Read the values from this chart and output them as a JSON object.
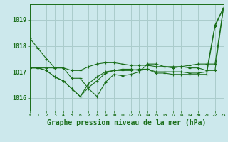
{
  "bg_color": "#cce8ec",
  "grid_color": "#aacccc",
  "line_color": "#1a6e1a",
  "xlabel": "Graphe pression niveau de la mer (hPa)",
  "xlim": [
    0,
    23
  ],
  "ylim": [
    1015.5,
    1019.6
  ],
  "yticks": [
    1016,
    1017,
    1018,
    1019
  ],
  "xticks": [
    0,
    1,
    2,
    3,
    4,
    5,
    6,
    7,
    8,
    9,
    10,
    11,
    12,
    13,
    14,
    15,
    16,
    17,
    18,
    19,
    20,
    21,
    22,
    23
  ],
  "series": [
    [
      1018.3,
      1017.9,
      1017.5,
      1017.15,
      1017.15,
      1016.75,
      1016.75,
      1016.35,
      1016.05,
      1016.6,
      1016.9,
      1016.85,
      1016.9,
      1017.0,
      1017.3,
      1017.3,
      1017.2,
      1017.15,
      1017.2,
      1017.15,
      1017.15,
      1017.05,
      1017.05,
      1019.45
    ],
    [
      1017.15,
      1017.15,
      1017.15,
      1017.15,
      1017.15,
      1017.05,
      1017.05,
      1017.2,
      1017.3,
      1017.35,
      1017.35,
      1017.3,
      1017.25,
      1017.25,
      1017.25,
      1017.2,
      1017.2,
      1017.2,
      1017.2,
      1017.25,
      1017.3,
      1017.3,
      1017.3,
      1019.45
    ],
    [
      1017.15,
      1017.15,
      1017.05,
      1016.8,
      1016.65,
      1016.35,
      1016.05,
      1016.55,
      1016.8,
      1017.0,
      1017.05,
      1017.05,
      1017.05,
      1017.1,
      1017.1,
      1017.0,
      1017.0,
      1017.0,
      1017.0,
      1016.95,
      1016.95,
      1017.0,
      1018.8,
      1019.45
    ],
    [
      1017.15,
      1017.15,
      1017.05,
      1016.8,
      1016.65,
      1016.35,
      1016.05,
      1016.4,
      1016.65,
      1016.95,
      1017.05,
      1017.1,
      1017.1,
      1017.05,
      1017.1,
      1016.95,
      1016.95,
      1016.9,
      1016.9,
      1016.9,
      1016.9,
      1016.9,
      1018.75,
      1019.45
    ]
  ]
}
